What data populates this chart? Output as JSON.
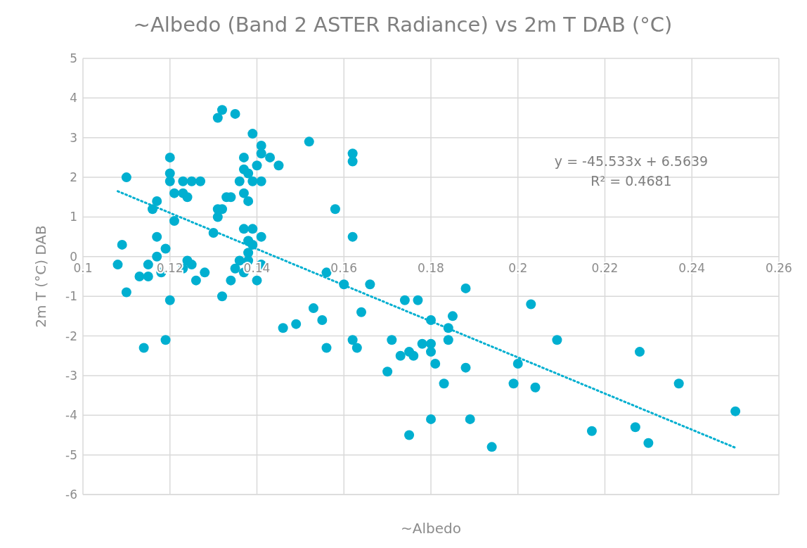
{
  "chart_data": {
    "type": "scatter",
    "title": "~Albedo (Band 2 ASTER Radiance) vs 2m T DAB (°C)",
    "xlabel": "~Albedo",
    "ylabel": "2m T (°C) DAB",
    "xlim": [
      0.1,
      0.26
    ],
    "xticks": [
      0.1,
      0.12,
      0.14,
      0.16,
      0.18,
      0.2,
      0.22,
      0.24,
      0.26
    ],
    "ylim": [
      -6,
      5
    ],
    "yticks": [
      -6,
      -5,
      -4,
      -3,
      -2,
      -1,
      0,
      1,
      2,
      3,
      4,
      5
    ],
    "grid": true,
    "marker": "circle",
    "annotations": [
      "y = -45.533x + 6.5639",
      "R² = 0.4681"
    ],
    "series": [
      {
        "color": "#00afd0",
        "x": [
          0.108,
          0.109,
          0.11,
          0.11,
          0.113,
          0.114,
          0.115,
          0.115,
          0.116,
          0.117,
          0.117,
          0.117,
          0.118,
          0.119,
          0.119,
          0.12,
          0.12,
          0.12,
          0.12,
          0.121,
          0.121,
          0.123,
          0.123,
          0.123,
          0.124,
          0.124,
          0.125,
          0.125,
          0.126,
          0.127,
          0.128,
          0.13,
          0.131,
          0.131,
          0.131,
          0.132,
          0.132,
          0.132,
          0.133,
          0.134,
          0.134,
          0.135,
          0.135,
          0.136,
          0.136,
          0.137,
          0.137,
          0.137,
          0.137,
          0.137,
          0.138,
          0.138,
          0.138,
          0.138,
          0.138,
          0.139,
          0.139,
          0.139,
          0.139,
          0.14,
          0.14,
          0.141,
          0.141,
          0.141,
          0.141,
          0.141,
          0.143,
          0.145,
          0.146,
          0.149,
          0.152,
          0.153,
          0.155,
          0.156,
          0.156,
          0.158,
          0.16,
          0.162,
          0.162,
          0.162,
          0.162,
          0.163,
          0.164,
          0.166,
          0.17,
          0.171,
          0.173,
          0.174,
          0.175,
          0.175,
          0.176,
          0.177,
          0.178,
          0.18,
          0.18,
          0.18,
          0.18,
          0.181,
          0.183,
          0.184,
          0.184,
          0.185,
          0.188,
          0.188,
          0.189,
          0.194,
          0.199,
          0.2,
          0.203,
          0.204,
          0.209,
          0.217,
          0.227,
          0.228,
          0.23,
          0.237,
          0.25
        ],
        "values": [
          -0.2,
          0.3,
          2.0,
          -0.9,
          -0.5,
          -2.3,
          -0.5,
          -0.2,
          1.2,
          1.4,
          0.5,
          0.0,
          -0.4,
          0.2,
          -2.1,
          2.5,
          2.1,
          1.9,
          -1.1,
          1.6,
          0.9,
          1.9,
          1.6,
          -0.3,
          1.5,
          -0.1,
          1.9,
          -0.2,
          -0.6,
          1.9,
          -0.4,
          0.6,
          3.5,
          1.0,
          1.2,
          3.7,
          1.2,
          -1.0,
          1.5,
          1.5,
          -0.6,
          3.6,
          -0.3,
          1.9,
          -0.1,
          2.5,
          2.2,
          1.6,
          0.7,
          -0.4,
          2.1,
          1.4,
          0.4,
          0.1,
          -0.1,
          3.1,
          1.9,
          0.7,
          0.3,
          2.3,
          -0.6,
          2.8,
          2.6,
          1.9,
          0.5,
          -0.2,
          2.5,
          2.3,
          -1.8,
          -1.7,
          2.9,
          -1.3,
          -1.6,
          -0.4,
          -2.3,
          1.2,
          -0.7,
          2.6,
          2.4,
          0.5,
          -2.1,
          -2.3,
          -1.4,
          -0.7,
          -2.9,
          -2.1,
          -2.5,
          -1.1,
          -2.4,
          -4.5,
          -2.5,
          -1.1,
          -2.2,
          -1.6,
          -2.2,
          -2.4,
          -4.1,
          -2.7,
          -3.2,
          -1.8,
          -2.1,
          -1.5,
          -0.8,
          -2.8,
          -4.1,
          -4.8,
          -3.2,
          -2.7,
          -1.2,
          -3.3,
          -2.1,
          -4.4,
          -4.3,
          -2.4,
          -4.7,
          -3.2,
          -3.9
        ]
      },
      {
        "type": "line",
        "color": "#00afd0",
        "line_style": "dotted",
        "marker": "none",
        "x": [
          0.108,
          0.25
        ],
        "values": [
          1.65,
          -4.82
        ]
      }
    ]
  }
}
